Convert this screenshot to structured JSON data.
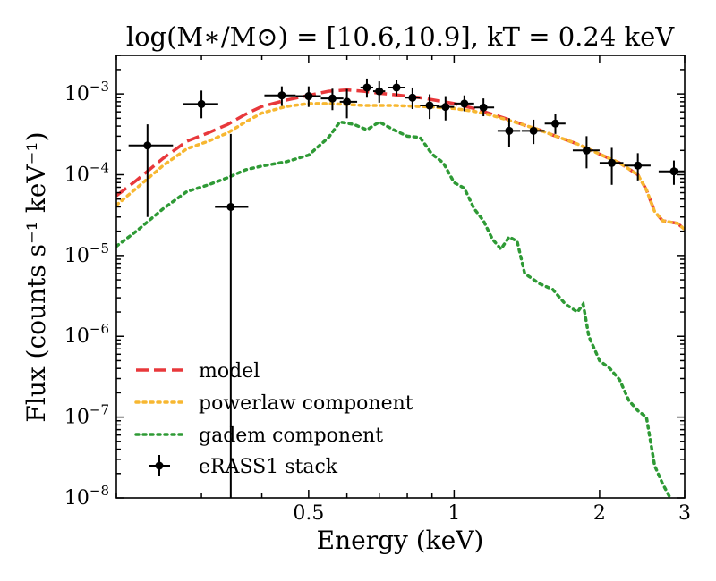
{
  "chart_data": {
    "type": "line",
    "title": "log(M∗/M⊙) = [10.6,10.9], kT = 0.24 keV",
    "xlabel": "Energy (keV)",
    "ylabel": "Flux (counts s⁻¹ keV⁻¹)",
    "xscale": "log",
    "yscale": "log",
    "xlim": [
      0.2,
      3.0
    ],
    "ylim": [
      1e-08,
      0.003
    ],
    "x_ticks": [
      {
        "value": 0.5,
        "label": "0.5"
      },
      {
        "value": 1,
        "label": "1"
      },
      {
        "value": 2,
        "label": "2"
      },
      {
        "value": 3,
        "label": "3"
      }
    ],
    "y_ticks": [
      {
        "value": 1e-08,
        "base": "10",
        "exp": "−8"
      },
      {
        "value": 1e-07,
        "base": "10",
        "exp": "−7"
      },
      {
        "value": 1e-06,
        "base": "10",
        "exp": "−6"
      },
      {
        "value": 1e-05,
        "base": "10",
        "exp": "−5"
      },
      {
        "value": 0.0001,
        "base": "10",
        "exp": "−4"
      },
      {
        "value": 0.001,
        "base": "10",
        "exp": "−3"
      }
    ],
    "legend_position": "lower-left",
    "series": [
      {
        "name": "model",
        "style": "dashed",
        "color": "#e8383b",
        "x": [
          0.2,
          0.22,
          0.25,
          0.28,
          0.31,
          0.34,
          0.37,
          0.4,
          0.45,
          0.5,
          0.55,
          0.6,
          0.65,
          0.7,
          0.75,
          0.8,
          0.85,
          0.9,
          1.0,
          1.1,
          1.2,
          1.3,
          1.4,
          1.5,
          1.6,
          1.8,
          2.0,
          2.2,
          2.4,
          2.5,
          2.6,
          2.7,
          2.9,
          3.0
        ],
        "y": [
          5.5e-05,
          8.5e-05,
          0.00016,
          0.00026,
          0.00033,
          0.00042,
          0.00056,
          0.0007,
          0.00084,
          0.00096,
          0.00108,
          0.00112,
          0.00108,
          0.00102,
          0.00098,
          0.00094,
          0.0009,
          0.00085,
          0.00076,
          0.00066,
          0.00056,
          0.00048,
          0.00041,
          0.00036,
          0.00031,
          0.00024,
          0.00018,
          0.00014,
          0.0001,
          6.5e-05,
          3.5e-05,
          2.7e-05,
          2.5e-05,
          2.1e-05
        ]
      },
      {
        "name": "powerlaw component",
        "style": "dotted",
        "color": "#f7b731",
        "x": [
          0.2,
          0.22,
          0.25,
          0.28,
          0.31,
          0.34,
          0.37,
          0.4,
          0.45,
          0.5,
          0.55,
          0.6,
          0.65,
          0.7,
          0.75,
          0.8,
          0.85,
          0.9,
          1.0,
          1.1,
          1.2,
          1.3,
          1.4,
          1.5,
          1.6,
          1.8,
          2.0,
          2.2,
          2.4,
          2.5,
          2.6,
          2.7,
          2.9,
          3.0
        ],
        "y": [
          4.2e-05,
          6.8e-05,
          0.00013,
          0.00021,
          0.00026,
          0.00033,
          0.00045,
          0.00058,
          0.0007,
          0.00076,
          0.00076,
          0.00074,
          0.00072,
          0.00072,
          0.00072,
          0.00071,
          0.0007,
          0.00069,
          0.00066,
          0.00061,
          0.00054,
          0.00047,
          0.00041,
          0.00036,
          0.00031,
          0.00024,
          0.00018,
          0.00014,
          0.0001,
          6.5e-05,
          3.5e-05,
          2.7e-05,
          2.5e-05,
          2.1e-05
        ]
      },
      {
        "name": "gadem component",
        "style": "dotted",
        "color": "#2e9a35",
        "x": [
          0.2,
          0.22,
          0.25,
          0.28,
          0.31,
          0.34,
          0.37,
          0.4,
          0.45,
          0.5,
          0.55,
          0.58,
          0.62,
          0.66,
          0.7,
          0.75,
          0.8,
          0.85,
          0.9,
          0.95,
          1.0,
          1.05,
          1.1,
          1.15,
          1.2,
          1.25,
          1.3,
          1.35,
          1.4,
          1.5,
          1.6,
          1.7,
          1.8,
          1.85,
          1.9,
          2.0,
          2.1,
          2.2,
          2.3,
          2.4,
          2.5,
          2.6,
          2.7,
          2.8
        ],
        "y": [
          1.3e-05,
          2e-05,
          3.8e-05,
          6.2e-05,
          7.5e-05,
          9.2e-05,
          0.000115,
          0.000128,
          0.000145,
          0.000175,
          0.00029,
          0.00045,
          0.00042,
          0.00036,
          0.00045,
          0.00036,
          0.0003,
          0.00029,
          0.00018,
          0.00014,
          8e-05,
          6.8e-05,
          3.8e-05,
          2.7e-05,
          1.6e-05,
          1.2e-05,
          1.7e-05,
          1.5e-05,
          6e-06,
          4.5e-06,
          3.8e-06,
          2.5e-06,
          2e-06,
          2.5e-06,
          1e-06,
          5e-07,
          4e-07,
          2.9e-07,
          1.6e-07,
          1.2e-07,
          1e-07,
          2.5e-08,
          1.5e-08,
          1e-08
        ]
      }
    ],
    "data_points": {
      "name": "eRASS1 stack",
      "color": "#000000",
      "points": [
        {
          "x": 0.232,
          "y": 0.00023,
          "xerr": [
            0.02,
            0.03
          ],
          "yerr": [
            0.0002,
            0.00019
          ]
        },
        {
          "x": 0.3,
          "y": 0.00075,
          "xerr": [
            0.025,
            0.025
          ],
          "yerr": [
            0.00025,
            0.00035
          ]
        },
        {
          "x": 0.345,
          "y": 4e-05,
          "xerr": [
            0.025,
            0.03
          ],
          "yerr": [
            3.9999e-05,
            0.00028
          ]
        },
        {
          "x": 0.44,
          "y": 0.00096,
          "xerr": [
            0.035,
            0.03
          ],
          "yerr": [
            0.00025,
            0.00028
          ]
        },
        {
          "x": 0.5,
          "y": 0.00094,
          "xerr": [
            0.03,
            0.03
          ],
          "yerr": [
            0.00025,
            0.0003
          ]
        },
        {
          "x": 0.56,
          "y": 0.00088,
          "xerr": [
            0.03,
            0.03
          ],
          "yerr": [
            0.00025,
            0.00028
          ]
        },
        {
          "x": 0.6,
          "y": 0.0008,
          "xerr": [
            0.02,
            0.03
          ],
          "yerr": [
            0.0003,
            0.00035
          ]
        },
        {
          "x": 0.66,
          "y": 0.0012,
          "xerr": [
            0.02,
            0.02
          ],
          "yerr": [
            0.0003,
            0.00035
          ]
        },
        {
          "x": 0.7,
          "y": 0.00108,
          "xerr": [
            0.02,
            0.02
          ],
          "yerr": [
            0.0003,
            0.00035
          ]
        },
        {
          "x": 0.76,
          "y": 0.0012,
          "xerr": [
            0.03,
            0.03
          ],
          "yerr": [
            0.00025,
            0.00028
          ]
        },
        {
          "x": 0.82,
          "y": 0.0009,
          "xerr": [
            0.03,
            0.03
          ],
          "yerr": [
            0.00025,
            0.0003
          ]
        },
        {
          "x": 0.89,
          "y": 0.00072,
          "xerr": [
            0.04,
            0.04
          ],
          "yerr": [
            0.00023,
            0.00027
          ]
        },
        {
          "x": 0.96,
          "y": 0.00069,
          "xerr": [
            0.04,
            0.04
          ],
          "yerr": [
            0.00022,
            0.00025
          ]
        },
        {
          "x": 1.05,
          "y": 0.00076,
          "xerr": [
            0.05,
            0.05
          ],
          "yerr": [
            0.00015,
            0.0002
          ]
        },
        {
          "x": 1.15,
          "y": 0.00068,
          "xerr": [
            0.05,
            0.06
          ],
          "yerr": [
            0.00015,
            0.0002
          ]
        },
        {
          "x": 1.3,
          "y": 0.00035,
          "xerr": [
            0.07,
            0.07
          ],
          "yerr": [
            0.00013,
            0.00015
          ]
        },
        {
          "x": 1.46,
          "y": 0.00035,
          "xerr": [
            0.08,
            0.08
          ],
          "yerr": [
            0.00011,
            0.00013
          ]
        },
        {
          "x": 1.62,
          "y": 0.00043,
          "xerr": [
            0.08,
            0.08
          ],
          "yerr": [
            0.00011,
            0.00014
          ]
        },
        {
          "x": 1.88,
          "y": 0.0002,
          "xerr": [
            0.12,
            0.12
          ],
          "yerr": [
            8e-05,
            0.0001
          ]
        },
        {
          "x": 2.12,
          "y": 0.00014,
          "xerr": [
            0.12,
            0.12
          ],
          "yerr": [
            6.5e-05,
            7.5e-05
          ]
        },
        {
          "x": 2.4,
          "y": 0.00013,
          "xerr": [
            0.15,
            0.15
          ],
          "yerr": [
            4.5e-05,
            5.5e-05
          ]
        },
        {
          "x": 2.85,
          "y": 0.00011,
          "xerr": [
            0.2,
            0.2
          ],
          "yerr": [
            3.5e-05,
            4e-05
          ]
        }
      ]
    }
  }
}
